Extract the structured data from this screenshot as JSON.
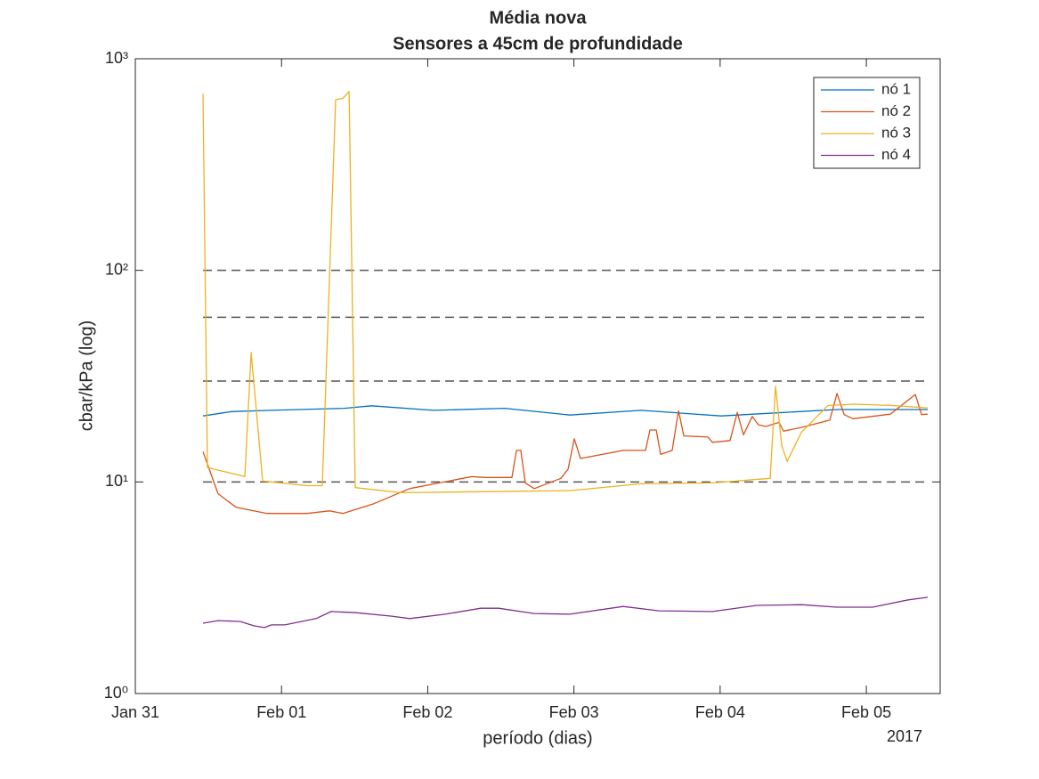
{
  "chart_data": {
    "type": "line",
    "title": "Média nova",
    "subtitle": "Sensores a 45cm de profundidade",
    "xlabel": "período (dias)",
    "ylabel": "cbar/kPa (log)",
    "x_secondary_label": "2017",
    "xlim": [
      0,
      5.505
    ],
    "xticks": [
      {
        "value": 0,
        "label": "Jan 31"
      },
      {
        "value": 1,
        "label": "Feb 01"
      },
      {
        "value": 2,
        "label": "Feb 02"
      },
      {
        "value": 3,
        "label": "Feb 03"
      },
      {
        "value": 4,
        "label": "Feb 04"
      },
      {
        "value": 5,
        "label": "Feb 05"
      }
    ],
    "ylim": [
      1,
      1000
    ],
    "yticks": [
      {
        "value": 1,
        "label": "10⁰"
      },
      {
        "value": 10,
        "label": "10¹"
      },
      {
        "value": 100,
        "label": "10²"
      },
      {
        "value": 1000,
        "label": "10³"
      }
    ],
    "yscale": "log",
    "legend_location": "northeast",
    "reference_lines": {
      "values": [
        10,
        30,
        60,
        100
      ],
      "color": "#555555"
    },
    "series": [
      {
        "name": "nó 1",
        "color": "#0072BD",
        "x": [
          0.463,
          0.658,
          0.926,
          1.431,
          1.614,
          2.04,
          2.527,
          2.972,
          3.459,
          4.007,
          4.434,
          4.799,
          5.42
        ],
        "values": [
          20.5,
          21.5,
          21.8,
          22.3,
          22.9,
          21.8,
          22.3,
          20.7,
          21.8,
          20.5,
          21.3,
          22.0,
          22.0
        ]
      },
      {
        "name": "nó 2",
        "color": "#D95319",
        "x": [
          0.463,
          0.566,
          0.688,
          0.901,
          1.175,
          1.328,
          1.419,
          1.632,
          1.876,
          2.302,
          2.393,
          2.576,
          2.607,
          2.637,
          2.667,
          2.728,
          2.911,
          2.96,
          3.002,
          3.045,
          3.337,
          3.49,
          3.52,
          3.563,
          3.593,
          3.672,
          3.715,
          3.752,
          3.916,
          3.947,
          4.068,
          4.117,
          4.16,
          4.22,
          4.263,
          4.312,
          4.403,
          4.434,
          4.556,
          4.75,
          4.799,
          4.848,
          4.909,
          5.164,
          5.335,
          5.378,
          5.42
        ],
        "values": [
          13.9,
          8.8,
          7.6,
          7.1,
          7.1,
          7.3,
          7.1,
          7.9,
          9.3,
          10.6,
          10.5,
          10.5,
          14.1,
          14.1,
          9.9,
          9.3,
          10.4,
          11.5,
          16.0,
          12.9,
          14.1,
          14.1,
          17.6,
          17.6,
          13.5,
          14.1,
          21.7,
          16.5,
          16.3,
          15.4,
          15.7,
          21.3,
          16.7,
          20.4,
          18.6,
          18.3,
          19.1,
          17.4,
          18.1,
          19.6,
          26.2,
          20.8,
          19.9,
          20.9,
          25.9,
          20.8,
          20.9
        ]
      },
      {
        "name": "nó 3",
        "color": "#EDB120",
        "x": [
          0.463,
          0.493,
          0.749,
          0.792,
          0.871,
          1.175,
          1.279,
          1.37,
          1.419,
          1.462,
          1.504,
          1.815,
          2.424,
          2.972,
          3.459,
          3.947,
          4.342,
          4.379,
          4.421,
          4.458,
          4.556,
          4.738,
          4.921,
          5.164,
          5.42
        ],
        "values": [
          684,
          11.7,
          10.6,
          40.9,
          10.1,
          9.6,
          9.6,
          640,
          650,
          700,
          9.4,
          8.9,
          9.0,
          9.1,
          9.8,
          9.9,
          10.4,
          28.3,
          14.9,
          12.5,
          17.2,
          23,
          23.3,
          23,
          22.4
        ]
      },
      {
        "name": "nó 4",
        "color": "#7E2F8E",
        "x": [
          0.463,
          0.566,
          0.719,
          0.81,
          0.883,
          0.932,
          1.023,
          1.236,
          1.34,
          1.51,
          1.754,
          1.876,
          2.119,
          2.363,
          2.485,
          2.728,
          2.972,
          3.337,
          3.581,
          3.947,
          4.251,
          4.556,
          4.799,
          5.043,
          5.287,
          5.42
        ],
        "values": [
          2.15,
          2.21,
          2.19,
          2.09,
          2.05,
          2.11,
          2.11,
          2.26,
          2.44,
          2.41,
          2.32,
          2.26,
          2.37,
          2.53,
          2.53,
          2.39,
          2.37,
          2.58,
          2.46,
          2.44,
          2.61,
          2.63,
          2.56,
          2.56,
          2.77,
          2.85
        ]
      }
    ]
  }
}
